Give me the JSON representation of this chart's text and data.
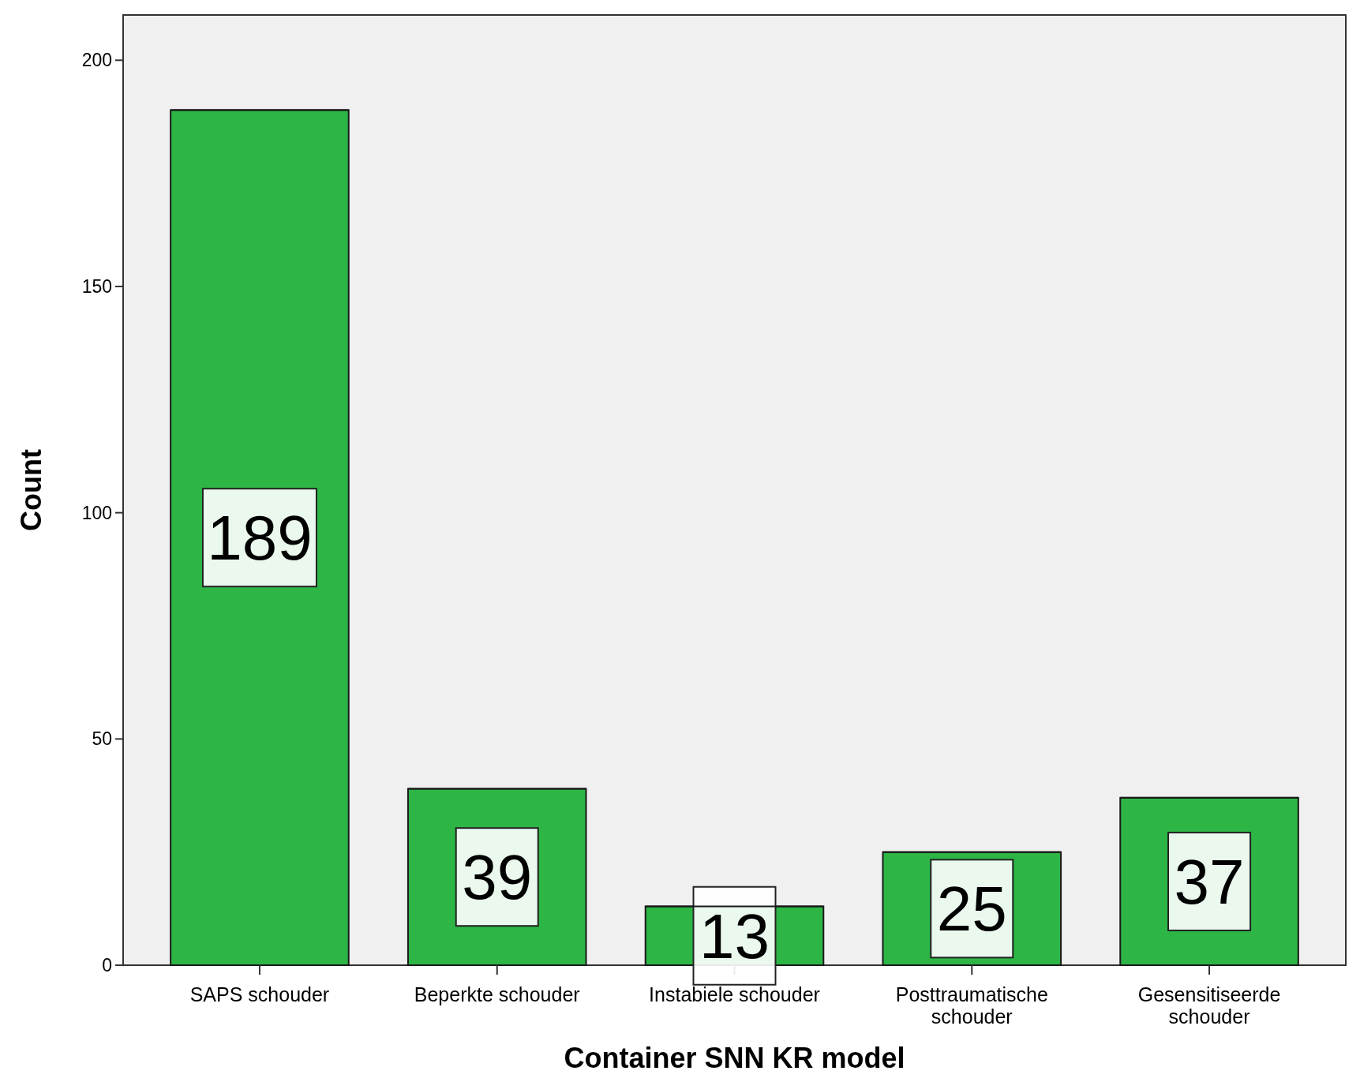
{
  "chart_data": {
    "type": "bar",
    "xlabel": "Container SNN KR model",
    "ylabel": "Count",
    "categories": [
      "SAPS schouder",
      "Beperkte schouder",
      "Instabiele schouder",
      "Posttraumatische schouder",
      "Gesensitiseerde schouder"
    ],
    "values": [
      189,
      39,
      13,
      25,
      37
    ],
    "color": "#2db546",
    "ylim": [
      0,
      210
    ],
    "yticks": [
      0,
      50,
      100,
      150,
      200
    ],
    "data_labels": true,
    "grid": false
  }
}
